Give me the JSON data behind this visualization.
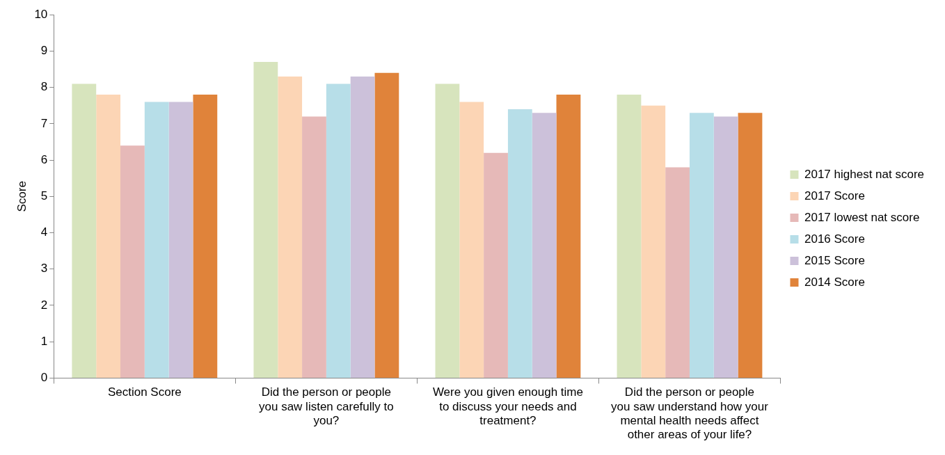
{
  "chart_data": {
    "type": "bar",
    "ylabel": "Score",
    "categories": [
      "Section Score",
      "Did the person or people you saw listen carefully to you?",
      "Were you given enough time to discuss your needs and treatment?",
      "Did the person or people you saw understand how your mental health needs affect other areas of your life?"
    ],
    "series": [
      {
        "name": "2017 highest nat score",
        "color": "#d7e4bd",
        "values": [
          8.1,
          8.7,
          8.1,
          7.8
        ]
      },
      {
        "name": "2017 Score",
        "color": "#fcd5b5",
        "values": [
          7.8,
          8.3,
          7.6,
          7.5
        ]
      },
      {
        "name": "2017 lowest nat score",
        "color": "#e6b9b8",
        "values": [
          6.4,
          7.2,
          6.2,
          5.8
        ]
      },
      {
        "name": "2016 Score",
        "color": "#b7dee8",
        "values": [
          7.6,
          8.1,
          7.4,
          7.3
        ]
      },
      {
        "name": "2015 Score",
        "color": "#ccc1da",
        "values": [
          7.6,
          8.3,
          7.3,
          7.2
        ]
      },
      {
        "name": "2014 Score",
        "color": "#e0833a",
        "values": [
          7.8,
          8.4,
          7.8,
          7.3
        ]
      }
    ],
    "ylim": [
      0,
      10
    ],
    "yticks": [
      0,
      1,
      2,
      3,
      4,
      5,
      6,
      7,
      8,
      9,
      10
    ],
    "grid": false,
    "legend": "right"
  }
}
